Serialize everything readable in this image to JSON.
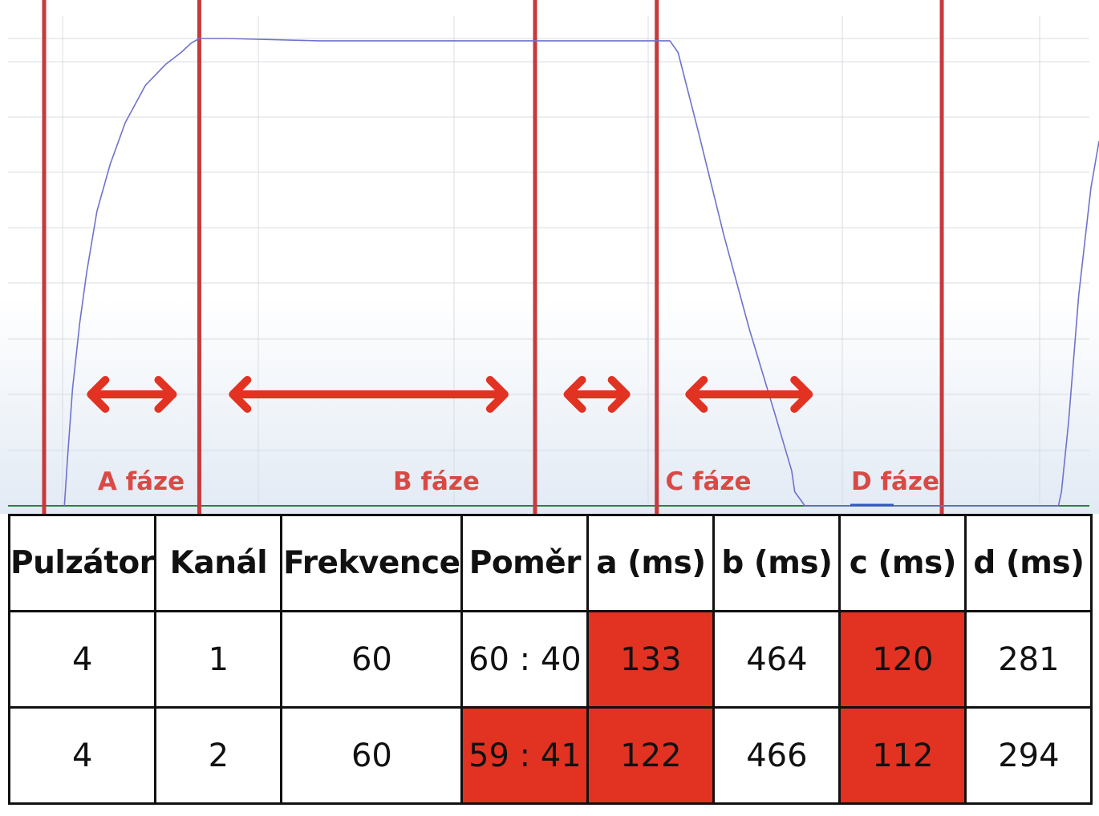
{
  "chart_data": {
    "type": "line",
    "title": "",
    "xlabel": "",
    "ylabel": "",
    "phases": [
      {
        "label": "A fáze"
      },
      {
        "label": "B fáze"
      },
      {
        "label": "C fáze"
      },
      {
        "label": "D fáze"
      }
    ],
    "series": [
      {
        "color": "#6f72cc",
        "t": [
          0,
          3,
          8,
          15,
          22,
          32,
          45,
          60,
          80,
          100,
          115,
          125,
          133,
          160,
          250,
          350,
          430,
          597,
          605,
          625,
          650,
          675,
          700,
          717,
          720,
          730,
          980,
          983,
          990,
          1000,
          1012,
          1020
        ],
        "values": [
          0,
          10,
          25,
          39,
          50,
          63,
          73,
          82,
          90,
          94.5,
          97,
          99,
          100,
          100,
          99.5,
          99.5,
          99.5,
          99.5,
          97,
          80,
          58,
          38,
          20,
          7.5,
          3,
          0,
          0,
          3,
          18,
          45,
          68,
          78
        ]
      }
    ],
    "xlim": [
      -20,
      1020
    ],
    "ylim": [
      0,
      105
    ],
    "grid": true,
    "legend": "none",
    "phase_line_color": "#c73a3c",
    "arrow_color": "#e23222"
  },
  "table": {
    "headers": [
      "Pulzátor",
      "Kanál",
      "Frekvence",
      "Poměr",
      "a (ms)",
      "b (ms)",
      "c (ms)",
      "d (ms)"
    ],
    "rows": [
      {
        "cells": [
          "4",
          "1",
          "60",
          "60 : 40",
          "133",
          "464",
          "120",
          "281"
        ],
        "highlight": [
          false,
          false,
          false,
          false,
          true,
          false,
          true,
          false
        ]
      },
      {
        "cells": [
          "4",
          "2",
          "60",
          "59 : 41",
          "122",
          "466",
          "112",
          "294"
        ],
        "highlight": [
          false,
          false,
          false,
          true,
          true,
          false,
          true,
          false
        ]
      }
    ],
    "highlight_color": "#e23222"
  }
}
